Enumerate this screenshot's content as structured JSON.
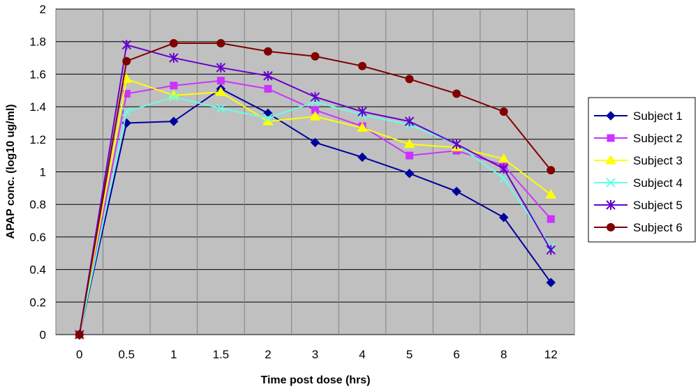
{
  "chart_data": {
    "type": "line",
    "title": "",
    "xlabel": "Time post dose (hrs)",
    "ylabel": "APAP  conc. (log10 ug/ml)",
    "categories": [
      "0",
      "0.5",
      "1",
      "1.5",
      "2",
      "3",
      "4",
      "5",
      "6",
      "8",
      "12"
    ],
    "yticks": [
      "0",
      "0.2",
      "0.4",
      "0.6",
      "0.8",
      "1",
      "1.2",
      "1.4",
      "1.6",
      "1.8",
      "2"
    ],
    "ylim": [
      0,
      2
    ],
    "grid": true,
    "legend_position": "right",
    "plot_background": "#c0c0c0",
    "series": [
      {
        "name": "Subject 1",
        "color": "#00009c",
        "marker": "diamond",
        "values": [
          0,
          1.3,
          1.31,
          1.51,
          1.36,
          1.18,
          1.09,
          0.99,
          0.88,
          0.72,
          0.32
        ]
      },
      {
        "name": "Subject 2",
        "color": "#cc33ff",
        "marker": "square",
        "values": [
          0,
          1.48,
          1.53,
          1.56,
          1.51,
          1.38,
          1.28,
          1.1,
          1.13,
          1.04,
          0.71
        ]
      },
      {
        "name": "Subject 3",
        "color": "#ffff00",
        "marker": "triangle",
        "values": [
          0,
          1.57,
          1.47,
          1.49,
          1.31,
          1.34,
          1.27,
          1.17,
          1.15,
          1.08,
          0.86
        ]
      },
      {
        "name": "Subject 4",
        "color": "#66ffe6",
        "marker": "x",
        "values": [
          0,
          1.37,
          1.46,
          1.39,
          1.33,
          1.43,
          1.35,
          1.29,
          1.17,
          0.96,
          0.54
        ]
      },
      {
        "name": "Subject 5",
        "color": "#6600cc",
        "marker": "star",
        "values": [
          0,
          1.78,
          1.7,
          1.64,
          1.59,
          1.46,
          1.37,
          1.31,
          1.17,
          1.02,
          0.52
        ]
      },
      {
        "name": "Subject 6",
        "color": "#800000",
        "marker": "circle",
        "values": [
          0,
          1.68,
          1.79,
          1.79,
          1.74,
          1.71,
          1.65,
          1.57,
          1.48,
          1.37,
          1.01
        ]
      }
    ]
  }
}
